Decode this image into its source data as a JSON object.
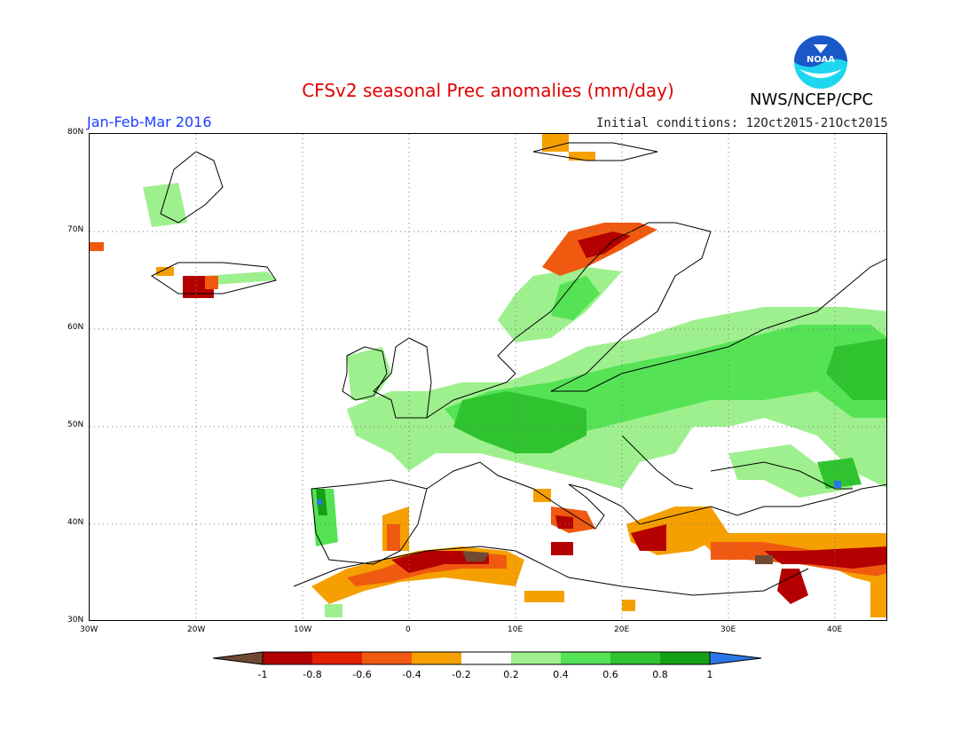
{
  "title": "CFSv2 seasonal Prec anomalies (mm/day)",
  "org": "NWS/NCEP/CPC",
  "logo_text": "NOAA",
  "period": "Jan-Feb-Mar 2016",
  "initial_conditions": "Initial conditions: 12Oct2015-21Oct2015",
  "lat_labels": [
    "80N",
    "70N",
    "60N",
    "50N",
    "40N",
    "30N"
  ],
  "lon_labels": [
    "30W",
    "20W",
    "10W",
    "0",
    "10E",
    "20E",
    "30E",
    "40E"
  ],
  "colorbar": {
    "ticks": [
      "-1",
      "-0.8",
      "-0.6",
      "-0.4",
      "-0.2",
      "0.2",
      "0.4",
      "0.6",
      "0.8",
      "1"
    ],
    "colors": [
      "#6e4a32",
      "#b40000",
      "#e02000",
      "#f05a10",
      "#f5a000",
      "#ffffff",
      "#9ef08e",
      "#55e355",
      "#2fc42f",
      "#14a014",
      "#2b77e8"
    ]
  },
  "colors": {
    "title": "#e00000",
    "period": "#1a3cff",
    "noaa_blue": "#1a58c8",
    "noaa_cyan": "#1ed6f0"
  }
}
